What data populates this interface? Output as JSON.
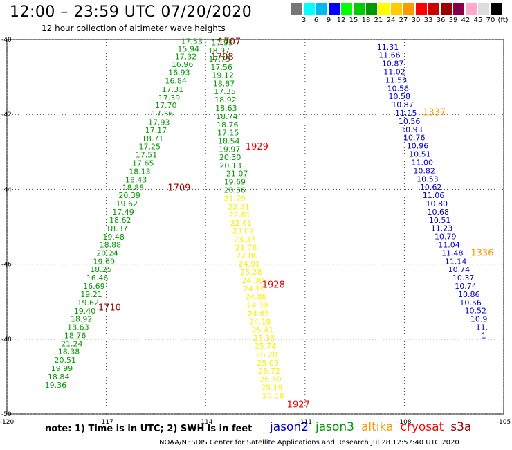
{
  "title": "12:00 – 23:59 UTC 07/20/2020",
  "subtitle": "12 hour collection of altimeter wave heights",
  "scale": {
    "colors": [
      "#777777",
      "#00ffff",
      "#00bbee",
      "#0000ff",
      "#00ff00",
      "#00cc00",
      "#009900",
      "#ffff00",
      "#ffcc00",
      "#ff9900",
      "#ff0000",
      "#cc0000",
      "#990000",
      "#880044",
      "#ffaacc",
      "#dddddd",
      "#000000"
    ],
    "labels": [
      "3",
      "6",
      "9",
      "12",
      "15",
      "18",
      "21",
      "24",
      "27",
      "30",
      "33",
      "36",
      "39",
      "42",
      "45",
      "70",
      "(ft)"
    ]
  },
  "note": "note:  1) Time is in UTC;  2) SWH is in feet",
  "legend": [
    {
      "name": "jason2",
      "color": "#0000cc"
    },
    {
      "name": "jason3",
      "color": "#009900"
    },
    {
      "name": "altika",
      "color": "#ff9900"
    },
    {
      "name": "cryosat",
      "color": "#ff0000"
    },
    {
      "name": "s3a",
      "color": "#990000"
    }
  ],
  "credit": "NOAA/NESDIS Center for Satellite Applications and Research     Jul 28 12:57:40 UTC 2020",
  "chart_data": {
    "type": "scatter",
    "xlabel": "",
    "ylabel": "",
    "x_ticks": [
      -120,
      -117,
      -114,
      -111,
      -108,
      -105
    ],
    "y_ticks": [
      -40,
      -42,
      -44,
      -46,
      -48,
      -50
    ],
    "xlim": [
      -120,
      -105
    ],
    "ylim": [
      -50,
      -40
    ],
    "colors": {
      "g": "#009900",
      "y": "#ffee00",
      "o": "#ff9900",
      "b": "#0000cc",
      "lg": "#00cc00"
    },
    "series": [
      {
        "name": "jason3",
        "color_key": "g",
        "points": [
          [
            -114.42,
            -40.05,
            "17.53"
          ],
          [
            -114.52,
            -40.25,
            "15.94"
          ],
          [
            -114.6,
            -40.45,
            "17.32"
          ],
          [
            -114.7,
            -40.67,
            "16.96"
          ],
          [
            -114.8,
            -40.88,
            "16.93"
          ],
          [
            -114.9,
            -41.1,
            "16.84"
          ],
          [
            -115.0,
            -41.33,
            "17.31"
          ],
          [
            -115.1,
            -41.55,
            "17.39"
          ],
          [
            -115.2,
            -41.76,
            "17.70"
          ],
          [
            -115.31,
            -41.98,
            "17.36"
          ],
          [
            -115.41,
            -42.21,
            "17.93"
          ],
          [
            -115.5,
            -42.42,
            "17.17"
          ],
          [
            -115.6,
            -42.64,
            "18.71"
          ],
          [
            -115.69,
            -42.86,
            "17.25"
          ],
          [
            -115.79,
            -43.08,
            "17.51"
          ],
          [
            -115.89,
            -43.3,
            "17.65"
          ],
          [
            -115.99,
            -43.52,
            "18.13"
          ],
          [
            -116.1,
            -43.74,
            "18.43"
          ],
          [
            -116.19,
            -43.95,
            "18.88"
          ],
          [
            -116.3,
            -44.16,
            "20.39"
          ],
          [
            -116.38,
            -44.38,
            "19.62"
          ],
          [
            -116.49,
            -44.6,
            "17.49"
          ],
          [
            -116.58,
            -44.82,
            "18.62"
          ],
          [
            -116.68,
            -45.05,
            "18.37"
          ],
          [
            -116.78,
            -45.27,
            "19.48"
          ],
          [
            -116.88,
            -45.48,
            "18.88"
          ],
          [
            -116.97,
            -45.7,
            "20.24"
          ],
          [
            -117.07,
            -45.92,
            "19.69"
          ],
          [
            -117.16,
            -46.14,
            "18.25"
          ],
          [
            -117.27,
            -46.36,
            "16.46"
          ],
          [
            -117.37,
            -46.58,
            "16.69"
          ],
          [
            -117.45,
            -46.8,
            "19.21"
          ],
          [
            -117.55,
            -47.02,
            "19.62"
          ],
          [
            -117.65,
            -47.25,
            "19.40"
          ],
          [
            -117.75,
            -47.46,
            "18.92"
          ],
          [
            -117.85,
            -47.68,
            "18.63"
          ],
          [
            -117.94,
            -47.9,
            "18.76"
          ],
          [
            -118.04,
            -48.12,
            "21.24"
          ],
          [
            -118.13,
            -48.33,
            "18.38"
          ],
          [
            -118.24,
            -48.56,
            "20.51"
          ],
          [
            -118.34,
            -48.78,
            "19.99"
          ],
          [
            -118.44,
            -49.0,
            "18.84"
          ],
          [
            -118.53,
            -49.22,
            "19.36"
          ]
        ]
      },
      {
        "name": "jason3",
        "color_key": "g",
        "points": [
          [
            -113.5,
            -40.08,
            "17.99"
          ],
          [
            -113.6,
            -40.3,
            "18.97"
          ],
          [
            -113.58,
            -40.52,
            "17.75"
          ],
          [
            -113.52,
            -40.74,
            "17.56"
          ],
          [
            -113.48,
            -40.95,
            "19.12"
          ],
          [
            -113.45,
            -41.17,
            "18.87"
          ],
          [
            -113.42,
            -41.39,
            "17.35"
          ],
          [
            -113.4,
            -41.61,
            "18.92"
          ],
          [
            -113.38,
            -41.83,
            "18.63"
          ],
          [
            -113.36,
            -42.05,
            "18.74"
          ],
          [
            -113.34,
            -42.27,
            "18.76"
          ],
          [
            -113.32,
            -42.49,
            "17.15"
          ],
          [
            -113.3,
            -42.71,
            "18.54"
          ],
          [
            -113.28,
            -42.93,
            "19.97"
          ],
          [
            -113.26,
            -43.14,
            "20.30"
          ],
          [
            -113.25,
            -43.36,
            "20.13"
          ],
          [
            -113.05,
            -43.58,
            "21.07"
          ],
          [
            -113.12,
            -43.8,
            "19.69"
          ],
          [
            -113.12,
            -44.02,
            "20.56"
          ]
        ]
      },
      {
        "name": "altika",
        "color_key": "y",
        "points": [
          [
            -113.12,
            -44.24,
            "21.79"
          ],
          [
            -113.0,
            -44.46,
            "22.31"
          ],
          [
            -112.97,
            -44.68,
            "22.81"
          ],
          [
            -112.93,
            -44.9,
            "22.61"
          ],
          [
            -112.87,
            -45.11,
            "23.07"
          ],
          [
            -112.82,
            -45.33,
            "23.37"
          ],
          [
            -112.78,
            -45.55,
            "21.76"
          ],
          [
            -112.75,
            -45.77,
            "22.86"
          ],
          [
            -112.68,
            -45.99,
            "24.91"
          ],
          [
            -112.63,
            -46.21,
            "23.28"
          ],
          [
            -112.58,
            -46.43,
            "24.08"
          ],
          [
            -112.53,
            -46.65,
            "24.19"
          ],
          [
            -112.48,
            -46.87,
            "24.88"
          ],
          [
            -112.44,
            -47.09,
            "24.39"
          ],
          [
            -112.4,
            -47.31,
            "24.65"
          ],
          [
            -112.36,
            -47.53,
            "24.18"
          ],
          [
            -112.28,
            -47.75,
            "25.41"
          ],
          [
            -112.24,
            -47.97,
            "25.38"
          ],
          [
            -112.2,
            -48.19,
            "25.74"
          ],
          [
            -112.16,
            -48.41,
            "26.20"
          ],
          [
            -112.12,
            -48.63,
            "25.00"
          ],
          [
            -112.08,
            -48.85,
            "25.72"
          ],
          [
            -112.04,
            -49.07,
            "26.50"
          ],
          [
            -112.0,
            -49.29,
            "25.19"
          ],
          [
            -111.96,
            -49.51,
            "25.18"
          ]
        ]
      },
      {
        "name": "jason2",
        "color_key": "b",
        "points": [
          [
            -108.5,
            -40.2,
            "11.31"
          ],
          [
            -108.45,
            -40.42,
            "11.66"
          ],
          [
            -108.35,
            -40.64,
            "10.87"
          ],
          [
            -108.3,
            -40.86,
            "11.02"
          ],
          [
            -108.25,
            -41.08,
            "11.58"
          ],
          [
            -108.19,
            -41.3,
            "10.56"
          ],
          [
            -108.15,
            -41.52,
            "10.58"
          ],
          [
            -108.05,
            -41.74,
            "10.87"
          ],
          [
            -107.95,
            -41.96,
            "11.15"
          ],
          [
            -107.85,
            -42.18,
            "10.56"
          ],
          [
            -107.78,
            -42.4,
            "10.93"
          ],
          [
            -107.7,
            -42.62,
            "10.76"
          ],
          [
            -107.6,
            -42.84,
            "10.96"
          ],
          [
            -107.53,
            -43.06,
            "10.51"
          ],
          [
            -107.46,
            -43.28,
            "11.00"
          ],
          [
            -107.4,
            -43.5,
            "10.82"
          ],
          [
            -107.3,
            -43.72,
            "10.53"
          ],
          [
            -107.2,
            -43.94,
            "10.62"
          ],
          [
            -107.12,
            -44.16,
            "11.06"
          ],
          [
            -107.02,
            -44.38,
            "10.80"
          ],
          [
            -106.98,
            -44.6,
            "10.68"
          ],
          [
            -106.93,
            -44.82,
            "10.51"
          ],
          [
            -106.87,
            -45.04,
            "11.23"
          ],
          [
            -106.76,
            -45.26,
            "10.79"
          ],
          [
            -106.65,
            -45.48,
            "11.04"
          ],
          [
            -106.55,
            -45.7,
            "11.48"
          ],
          [
            -106.45,
            -45.92,
            "11.14"
          ],
          [
            -106.35,
            -46.14,
            "10.74"
          ],
          [
            -106.22,
            -46.36,
            "10.37"
          ],
          [
            -106.15,
            -46.58,
            "10.74"
          ],
          [
            -106.05,
            -46.8,
            "10.86"
          ],
          [
            -106.0,
            -47.02,
            "10.56"
          ],
          [
            -105.85,
            -47.24,
            "10.52"
          ],
          [
            -105.75,
            -47.46,
            "10.9"
          ],
          [
            -105.66,
            -47.68,
            "11."
          ],
          [
            -105.6,
            -47.9,
            "1"
          ]
        ]
      }
    ],
    "labels": [
      {
        "text": "1707",
        "x": -113.28,
        "y": -40.05,
        "color_key": "s3a"
      },
      {
        "text": "1708",
        "x": -113.5,
        "y": -40.45,
        "color_key": "s3a"
      },
      {
        "text": "1709",
        "x": -114.8,
        "y": -43.95,
        "color_key": "s3a"
      },
      {
        "text": "1710",
        "x": -116.9,
        "y": -47.14,
        "color_key": "s3a"
      },
      {
        "text": "1929",
        "x": -112.45,
        "y": -42.85,
        "color_key": "cryosat"
      },
      {
        "text": "1928",
        "x": -111.95,
        "y": -46.53,
        "color_key": "cryosat"
      },
      {
        "text": "1927",
        "x": -111.2,
        "y": -49.73,
        "color_key": "cryosat"
      },
      {
        "text": "1337",
        "x": -107.1,
        "y": -41.93,
        "color_key": "altika"
      },
      {
        "text": "1336",
        "x": -105.65,
        "y": -45.68,
        "color_key": "altika"
      }
    ]
  }
}
